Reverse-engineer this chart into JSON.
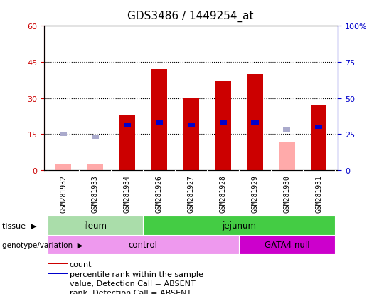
{
  "title": "GDS3486 / 1449254_at",
  "samples": [
    "GSM281932",
    "GSM281933",
    "GSM281934",
    "GSM281926",
    "GSM281927",
    "GSM281928",
    "GSM281929",
    "GSM281930",
    "GSM281931"
  ],
  "count_values": [
    2,
    2,
    23,
    42,
    30,
    37,
    40,
    0,
    27
  ],
  "value_absent": [
    true,
    true,
    false,
    false,
    false,
    false,
    false,
    true,
    false
  ],
  "rank_present": [
    false,
    false,
    true,
    true,
    true,
    true,
    true,
    false,
    true
  ],
  "rank_absent": [
    true,
    true,
    false,
    false,
    false,
    false,
    false,
    true,
    false
  ],
  "percentile_rank": [
    0,
    0,
    31,
    33,
    31,
    33,
    33,
    0,
    30
  ],
  "value_absent_vals": [
    2.5,
    2.5,
    0,
    0,
    0,
    0,
    0,
    12,
    0
  ],
  "rank_absent_vals": [
    15.2,
    14.0,
    0,
    0,
    0,
    0,
    0,
    17.0,
    0
  ],
  "ylim_left": [
    0,
    60
  ],
  "ylim_right": [
    0,
    100
  ],
  "yticks_left": [
    0,
    15,
    30,
    45,
    60
  ],
  "yticks_right": [
    0,
    25,
    50,
    75,
    100
  ],
  "ytick_labels_left": [
    "0",
    "15",
    "30",
    "45",
    "60"
  ],
  "ytick_labels_right": [
    "0",
    "25",
    "50",
    "75",
    "100%"
  ],
  "tissue_groups": [
    {
      "label": "ileum",
      "start": 0,
      "end": 3,
      "color": "#aaddaa"
    },
    {
      "label": "jejunum",
      "start": 3,
      "end": 9,
      "color": "#44cc44"
    }
  ],
  "genotype_groups": [
    {
      "label": "control",
      "start": 0,
      "end": 6,
      "color": "#ee99ee"
    },
    {
      "label": "GATA4 null",
      "start": 6,
      "end": 9,
      "color": "#cc00cc"
    }
  ],
  "bar_color_present": "#cc0000",
  "bar_color_absent_value": "#ffaaaa",
  "rank_color": "#0000cc",
  "rank_absent_color": "#aaaacc",
  "bar_width": 0.5,
  "legend_items": [
    {
      "label": "count",
      "color": "#cc0000"
    },
    {
      "label": "percentile rank within the sample",
      "color": "#0000cc"
    },
    {
      "label": "value, Detection Call = ABSENT",
      "color": "#ffaaaa"
    },
    {
      "label": "rank, Detection Call = ABSENT",
      "color": "#aaaacc"
    }
  ],
  "tissue_label": "tissue",
  "genotype_label": "genotype/variation",
  "left_axis_color": "#cc0000",
  "right_axis_color": "#0000cc",
  "dotted_lines": [
    15,
    30,
    45
  ],
  "xticklabel_bg": "#cccccc",
  "fig_width": 5.4,
  "fig_height": 4.14
}
